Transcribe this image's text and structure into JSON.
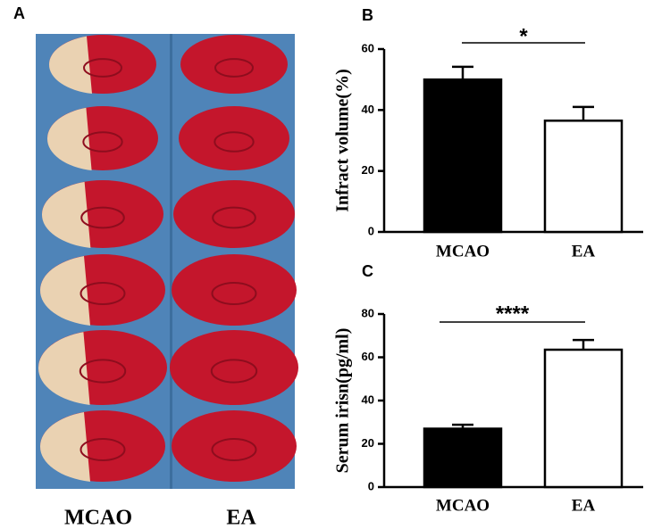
{
  "panel_a": {
    "label": "A",
    "columns": [
      "MCAO",
      "EA"
    ]
  },
  "chart_data": [
    {
      "type": "bar",
      "panel_label": "B",
      "ylabel": "Infract volume(%)",
      "categories": [
        "MCAO",
        "EA"
      ],
      "values": [
        50,
        36.5
      ],
      "errors": [
        4.2,
        4.5
      ],
      "colors": [
        "#000000",
        "#ffffff"
      ],
      "ylim": [
        0,
        60
      ],
      "yticks": [
        0,
        20,
        40,
        60
      ],
      "annotation": "*"
    },
    {
      "type": "bar",
      "panel_label": "C",
      "ylabel": "Serum irisn(pg/ml)",
      "categories": [
        "MCAO",
        "EA"
      ],
      "values": [
        27,
        63.5
      ],
      "errors": [
        1.8,
        4.5
      ],
      "colors": [
        "#000000",
        "#ffffff"
      ],
      "ylim": [
        0,
        80
      ],
      "yticks": [
        0,
        20,
        40,
        60,
        80
      ],
      "annotation": "****"
    }
  ]
}
